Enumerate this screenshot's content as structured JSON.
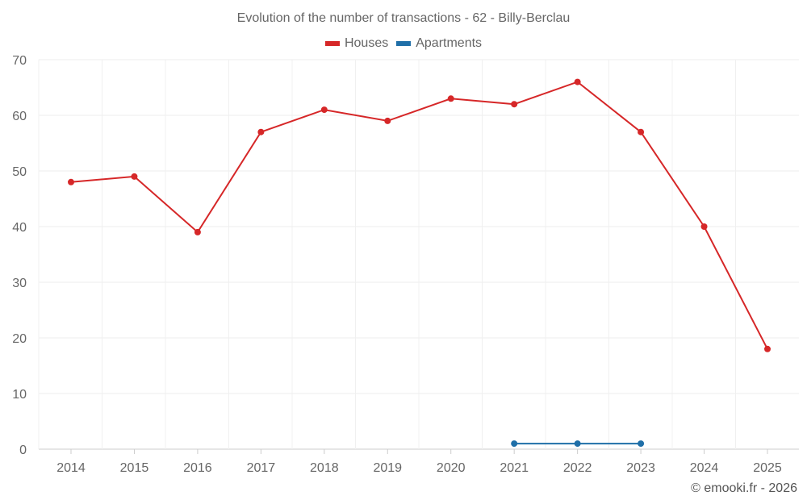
{
  "chart_data": {
    "type": "line",
    "title": "Evolution of the number of transactions - 62 - Billy-Berclau",
    "xlabel": "",
    "ylabel": "",
    "x": [
      "2014",
      "2015",
      "2016",
      "2017",
      "2018",
      "2019",
      "2020",
      "2021",
      "2022",
      "2023",
      "2024",
      "2025"
    ],
    "ylim": [
      0,
      70
    ],
    "yticks": [
      0,
      10,
      20,
      30,
      40,
      50,
      60,
      70
    ],
    "grid": true,
    "legend_position": "top-center",
    "series": [
      {
        "name": "Houses",
        "color": "#d62728",
        "values": [
          48,
          49,
          39,
          57,
          61,
          59,
          63,
          62,
          66,
          57,
          40,
          18
        ]
      },
      {
        "name": "Apartments",
        "color": "#1f6fa8",
        "values": [
          null,
          null,
          null,
          null,
          null,
          null,
          null,
          1,
          1,
          1,
          null,
          null
        ]
      }
    ]
  },
  "credit": "© emooki.fr - 2026"
}
